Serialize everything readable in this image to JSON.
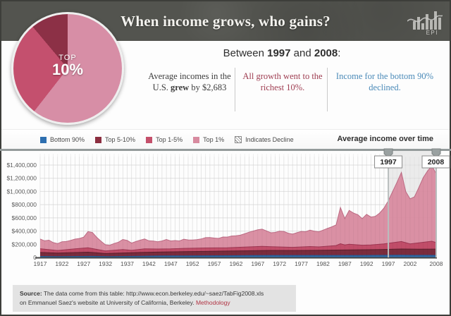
{
  "header": {
    "title": "When income grows, who gains?",
    "logo_text": "EPI"
  },
  "pie": {
    "center_label": {
      "line1": "TOP",
      "line2": "10%"
    },
    "slices": [
      {
        "label": "Top 1%",
        "color": "#d78ea6",
        "deg": 218
      },
      {
        "label": "Top 1-5%",
        "color": "#c4506e",
        "deg": 102
      },
      {
        "label": "Top 5-10%",
        "color": "#8c3046",
        "deg": 40
      }
    ]
  },
  "intro": {
    "prefix": "Between ",
    "year_start": "1997",
    "mid": " and ",
    "year_end": "2008",
    "suffix": ":"
  },
  "columns": {
    "c1a": "Average incomes in the U.S. ",
    "c1b": "grew",
    "c1c": " by $2,683",
    "c2": "All growth went to the richest 10%.",
    "c3": "Income for the bottom 90% declined."
  },
  "legend": {
    "items": [
      {
        "label": "Bottom 90%",
        "color": "#2e6fb0"
      },
      {
        "label": "Top 5-10%",
        "color": "#8c2e40"
      },
      {
        "label": "Top 1-5%",
        "color": "#c44f6a"
      },
      {
        "label": "Top 1%",
        "color": "#d88ba0"
      }
    ],
    "decline_label": "Indicates Decline",
    "chart_label": "Average income over time"
  },
  "markers": {
    "start": "1997",
    "end": "2008"
  },
  "chart_data": {
    "type": "area",
    "title": "Average income over time",
    "values_unit": "USD thousands (average income per group)",
    "ylim_thousands": [
      0,
      1400
    ],
    "y_tick_labels": [
      "$1,400,000",
      "$1,200,000",
      "$1,000,000",
      "$800,000",
      "$600,000",
      "$400,000",
      "$200,000",
      "0"
    ],
    "x_ticks": [
      1917,
      1922,
      1927,
      1932,
      1937,
      1942,
      1947,
      1952,
      1957,
      1962,
      1967,
      1972,
      1977,
      1982,
      1987,
      1992,
      1997,
      2002,
      2008
    ],
    "highlight_range": [
      1997,
      2008
    ],
    "grid": "on",
    "series": [
      {
        "name": "Top 1%",
        "color": "#d88ba0",
        "edge": "#bd6a83",
        "points": [
          [
            1917,
            280
          ],
          [
            1918,
            252
          ],
          [
            1919,
            262
          ],
          [
            1920,
            226
          ],
          [
            1921,
            210
          ],
          [
            1922,
            238
          ],
          [
            1923,
            242
          ],
          [
            1924,
            258
          ],
          [
            1925,
            278
          ],
          [
            1926,
            288
          ],
          [
            1927,
            308
          ],
          [
            1928,
            392
          ],
          [
            1929,
            378
          ],
          [
            1930,
            305
          ],
          [
            1931,
            245
          ],
          [
            1932,
            192
          ],
          [
            1933,
            185
          ],
          [
            1934,
            212
          ],
          [
            1935,
            232
          ],
          [
            1936,
            272
          ],
          [
            1937,
            258
          ],
          [
            1938,
            218
          ],
          [
            1939,
            242
          ],
          [
            1940,
            262
          ],
          [
            1941,
            280
          ],
          [
            1942,
            252
          ],
          [
            1943,
            248
          ],
          [
            1944,
            238
          ],
          [
            1945,
            250
          ],
          [
            1946,
            272
          ],
          [
            1947,
            250
          ],
          [
            1948,
            256
          ],
          [
            1949,
            250
          ],
          [
            1950,
            276
          ],
          [
            1951,
            266
          ],
          [
            1952,
            264
          ],
          [
            1953,
            270
          ],
          [
            1954,
            280
          ],
          [
            1955,
            300
          ],
          [
            1956,
            301
          ],
          [
            1957,
            294
          ],
          [
            1958,
            289
          ],
          [
            1959,
            310
          ],
          [
            1960,
            309
          ],
          [
            1961,
            325
          ],
          [
            1962,
            329
          ],
          [
            1963,
            338
          ],
          [
            1964,
            359
          ],
          [
            1965,
            383
          ],
          [
            1966,
            401
          ],
          [
            1967,
            419
          ],
          [
            1968,
            429
          ],
          [
            1969,
            403
          ],
          [
            1970,
            374
          ],
          [
            1971,
            379
          ],
          [
            1972,
            399
          ],
          [
            1973,
            394
          ],
          [
            1974,
            368
          ],
          [
            1975,
            354
          ],
          [
            1976,
            375
          ],
          [
            1977,
            394
          ],
          [
            1978,
            390
          ],
          [
            1979,
            414
          ],
          [
            1980,
            399
          ],
          [
            1981,
            389
          ],
          [
            1982,
            414
          ],
          [
            1983,
            439
          ],
          [
            1984,
            464
          ],
          [
            1985,
            494
          ],
          [
            1986,
            758
          ],
          [
            1987,
            589
          ],
          [
            1988,
            713
          ],
          [
            1989,
            672
          ],
          [
            1990,
            648
          ],
          [
            1991,
            588
          ],
          [
            1992,
            653
          ],
          [
            1993,
            612
          ],
          [
            1994,
            622
          ],
          [
            1995,
            672
          ],
          [
            1996,
            748
          ],
          [
            1997,
            860
          ],
          [
            1998,
            1000
          ],
          [
            1999,
            1140
          ],
          [
            2000,
            1288
          ],
          [
            2001,
            998
          ],
          [
            2002,
            888
          ],
          [
            2003,
            918
          ],
          [
            2004,
            1058
          ],
          [
            2005,
            1208
          ],
          [
            2006,
            1308
          ],
          [
            2007,
            1390
          ],
          [
            2008,
            1268
          ]
        ]
      },
      {
        "name": "Top 1-5%",
        "color": "#bf4a66",
        "edge": "#9d3652",
        "points": [
          [
            1917,
            132
          ],
          [
            1920,
            112
          ],
          [
            1921,
            106
          ],
          [
            1925,
            130
          ],
          [
            1928,
            146
          ],
          [
            1932,
            98
          ],
          [
            1936,
            120
          ],
          [
            1938,
            108
          ],
          [
            1941,
            130
          ],
          [
            1944,
            128
          ],
          [
            1947,
            130
          ],
          [
            1950,
            138
          ],
          [
            1955,
            144
          ],
          [
            1960,
            147
          ],
          [
            1965,
            160
          ],
          [
            1968,
            168
          ],
          [
            1971,
            161
          ],
          [
            1975,
            154
          ],
          [
            1979,
            166
          ],
          [
            1981,
            160
          ],
          [
            1985,
            181
          ],
          [
            1986,
            208
          ],
          [
            1987,
            190
          ],
          [
            1988,
            200
          ],
          [
            1991,
            186
          ],
          [
            1993,
            189
          ],
          [
            1996,
            205
          ],
          [
            2000,
            242
          ],
          [
            2002,
            206
          ],
          [
            2004,
            222
          ],
          [
            2007,
            246
          ],
          [
            2008,
            225
          ]
        ]
      },
      {
        "name": "Top 5-10%",
        "color": "#772b3b",
        "edge": "#5c1f2d",
        "points": [
          [
            1917,
            76
          ],
          [
            1921,
            66
          ],
          [
            1928,
            80
          ],
          [
            1932,
            60
          ],
          [
            1936,
            68
          ],
          [
            1940,
            76
          ],
          [
            1945,
            82
          ],
          [
            1950,
            88
          ],
          [
            1955,
            92
          ],
          [
            1960,
            97
          ],
          [
            1965,
            102
          ],
          [
            1970,
            107
          ],
          [
            1975,
            106
          ],
          [
            1980,
            108
          ],
          [
            1985,
            112
          ],
          [
            1990,
            117
          ],
          [
            1995,
            120
          ],
          [
            2000,
            128
          ],
          [
            2004,
            125
          ],
          [
            2008,
            127
          ]
        ]
      },
      {
        "name": "Bottom 90%",
        "color": "#2e6fae",
        "edge": "#235a92",
        "points": [
          [
            1917,
            16
          ],
          [
            1921,
            14
          ],
          [
            1929,
            17
          ],
          [
            1933,
            13
          ],
          [
            1940,
            18
          ],
          [
            1945,
            23
          ],
          [
            1950,
            23
          ],
          [
            1955,
            26
          ],
          [
            1960,
            27
          ],
          [
            1965,
            30
          ],
          [
            1970,
            31
          ],
          [
            1980,
            31
          ],
          [
            1990,
            31
          ],
          [
            2000,
            34
          ],
          [
            2003,
            32
          ],
          [
            2005,
            33
          ],
          [
            2008,
            32
          ]
        ]
      }
    ]
  },
  "footer": {
    "source_label": "Source:",
    "line1": " The data come from this table: http://www.econ.berkeley.edu/~saez/TabFig2008.xls",
    "line2": "on Emmanuel Saez's website at University of California, Berkeley. ",
    "link": "Methodology"
  }
}
